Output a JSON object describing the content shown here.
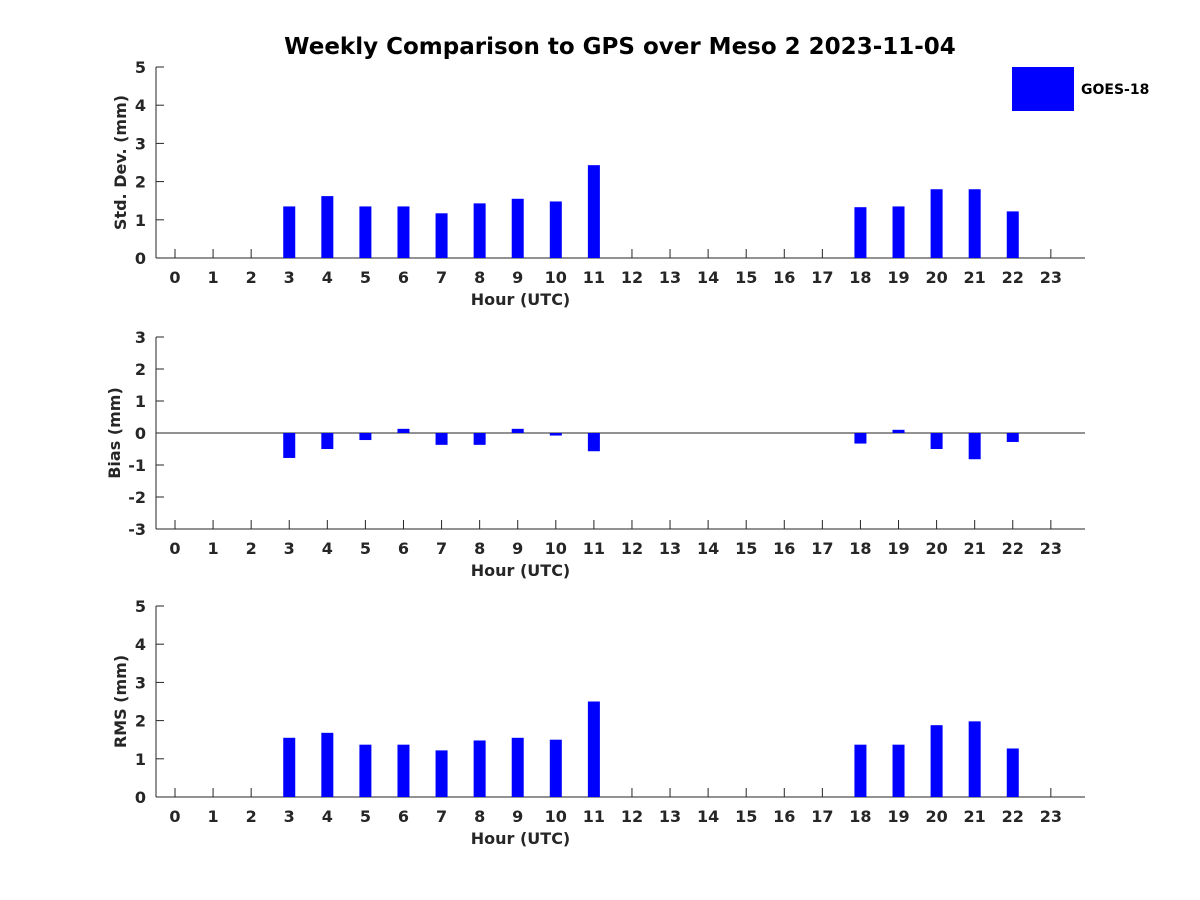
{
  "figure": {
    "title": "Weekly Comparison to GPS over Meso 2 2023-11-04"
  },
  "legend": {
    "label": "GOES-18",
    "color": "#0000ff",
    "placement": "top-right"
  },
  "chart_data": [
    {
      "type": "bar",
      "xlabel": "Hour (UTC)",
      "ylabel": "Std. Dev. (mm)",
      "ylim": [
        0,
        5
      ],
      "yticks": [
        0,
        1,
        2,
        3,
        4,
        5
      ],
      "x": [
        0,
        1,
        2,
        3,
        4,
        5,
        6,
        7,
        8,
        9,
        10,
        11,
        12,
        13,
        14,
        15,
        16,
        17,
        18,
        19,
        20,
        21,
        22,
        23
      ],
      "series": [
        {
          "name": "GOES-18",
          "color": "#0000ff",
          "values": [
            null,
            null,
            null,
            1.35,
            1.62,
            1.35,
            1.35,
            1.17,
            1.43,
            1.55,
            1.48,
            2.43,
            null,
            null,
            null,
            null,
            null,
            null,
            1.33,
            1.35,
            1.8,
            1.8,
            1.22,
            null
          ]
        }
      ],
      "zero_line": false
    },
    {
      "type": "bar",
      "xlabel": "Hour (UTC)",
      "ylabel": "Bias (mm)",
      "ylim": [
        -3,
        3
      ],
      "yticks": [
        -3,
        -2,
        -1,
        0,
        1,
        2,
        3
      ],
      "x": [
        0,
        1,
        2,
        3,
        4,
        5,
        6,
        7,
        8,
        9,
        10,
        11,
        12,
        13,
        14,
        15,
        16,
        17,
        18,
        19,
        20,
        21,
        22,
        23
      ],
      "series": [
        {
          "name": "GOES-18",
          "color": "#0000ff",
          "values": [
            null,
            null,
            null,
            -0.78,
            -0.5,
            -0.22,
            0.13,
            -0.37,
            -0.37,
            0.13,
            -0.08,
            -0.57,
            null,
            null,
            null,
            null,
            null,
            null,
            -0.33,
            0.1,
            -0.5,
            -0.82,
            -0.28,
            null
          ]
        }
      ],
      "zero_line": true
    },
    {
      "type": "bar",
      "xlabel": "Hour (UTC)",
      "ylabel": "RMS (mm)",
      "ylim": [
        0,
        5
      ],
      "yticks": [
        0,
        1,
        2,
        3,
        4,
        5
      ],
      "x": [
        0,
        1,
        2,
        3,
        4,
        5,
        6,
        7,
        8,
        9,
        10,
        11,
        12,
        13,
        14,
        15,
        16,
        17,
        18,
        19,
        20,
        21,
        22,
        23
      ],
      "series": [
        {
          "name": "GOES-18",
          "color": "#0000ff",
          "values": [
            null,
            null,
            null,
            1.55,
            1.68,
            1.37,
            1.37,
            1.22,
            1.48,
            1.55,
            1.5,
            2.5,
            null,
            null,
            null,
            null,
            null,
            null,
            1.37,
            1.37,
            1.88,
            1.98,
            1.27,
            null
          ]
        }
      ],
      "zero_line": false
    }
  ]
}
